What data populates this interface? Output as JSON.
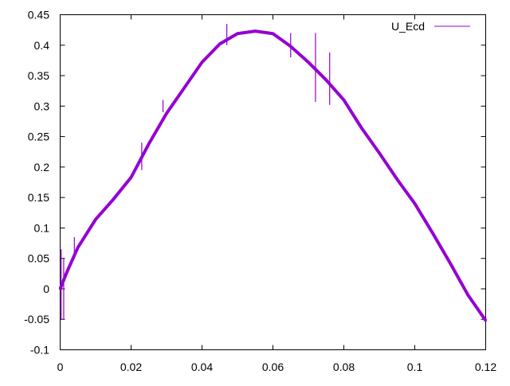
{
  "chart_data": {
    "type": "line",
    "title": "",
    "xlabel": "",
    "ylabel": "",
    "xlim": [
      0,
      0.12
    ],
    "ylim": [
      -0.1,
      0.45
    ],
    "grid": false,
    "legend_position": "top-right",
    "x_ticks": [
      "0",
      "0.02",
      "0.04",
      "0.06",
      "0.08",
      "0.1",
      "0.12"
    ],
    "y_ticks": [
      "-0.1",
      "-0.05",
      "0",
      "0.05",
      "0.1",
      "0.15",
      "0.2",
      "0.25",
      "0.3",
      "0.35",
      "0.4",
      "0.45"
    ],
    "series": [
      {
        "name": "U_Ecd",
        "color": "#9400d3",
        "x": [
          0,
          0.002,
          0.005,
          0.01,
          0.015,
          0.02,
          0.025,
          0.03,
          0.035,
          0.04,
          0.045,
          0.05,
          0.055,
          0.06,
          0.065,
          0.07,
          0.075,
          0.08,
          0.085,
          0.09,
          0.095,
          0.1,
          0.105,
          0.11,
          0.115,
          0.12
        ],
        "y": [
          0.0,
          0.029,
          0.068,
          0.114,
          0.147,
          0.183,
          0.238,
          0.288,
          0.33,
          0.372,
          0.402,
          0.419,
          0.423,
          0.419,
          0.398,
          0.372,
          0.343,
          0.31,
          0.264,
          0.223,
          0.18,
          0.14,
          0.092,
          0.042,
          -0.01,
          -0.052
        ],
        "spikes": [
          [
            0.0003,
            -0.05,
            0.065
          ],
          [
            0.001,
            -0.05,
            0.05
          ],
          [
            0.004,
            0.06,
            0.085
          ],
          [
            0.023,
            0.195,
            0.24
          ],
          [
            0.029,
            0.29,
            0.31
          ],
          [
            0.047,
            0.4,
            0.435
          ],
          [
            0.065,
            0.38,
            0.42
          ],
          [
            0.072,
            0.307,
            0.42
          ],
          [
            0.076,
            0.302,
            0.388
          ]
        ]
      }
    ]
  }
}
